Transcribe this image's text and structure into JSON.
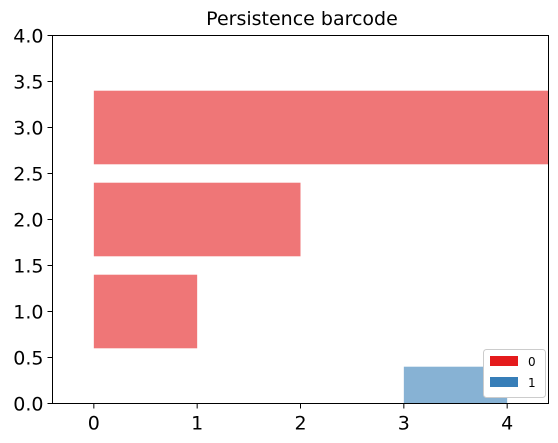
{
  "chart_data": {
    "type": "bar",
    "orientation": "horizontal",
    "title": "Persistence barcode",
    "xlabel": "",
    "ylabel": "",
    "xlim": [
      -0.4,
      4.4
    ],
    "ylim": [
      0,
      4
    ],
    "xticks": [
      "0",
      "1",
      "2",
      "3",
      "4"
    ],
    "yticks": [
      "0.0",
      "0.5",
      "1.0",
      "1.5",
      "2.0",
      "2.5",
      "3.0",
      "3.5",
      "4.0"
    ],
    "grid": false,
    "legend_position": "bottom-right",
    "series": [
      {
        "name": "0",
        "color": "#e41a1c",
        "bars": [
          {
            "start": 0,
            "end": 1,
            "y": 1.0,
            "height": 0.8
          },
          {
            "start": 0,
            "end": 2,
            "y": 2.0,
            "height": 0.8
          },
          {
            "start": 0,
            "end": 4.4,
            "y": 3.0,
            "height": 0.8
          }
        ]
      },
      {
        "name": "1",
        "color": "#377eb8",
        "bars": [
          {
            "start": 3,
            "end": 4,
            "y": 0.0,
            "height": 0.8
          }
        ]
      }
    ],
    "bar_alpha": 0.6
  }
}
